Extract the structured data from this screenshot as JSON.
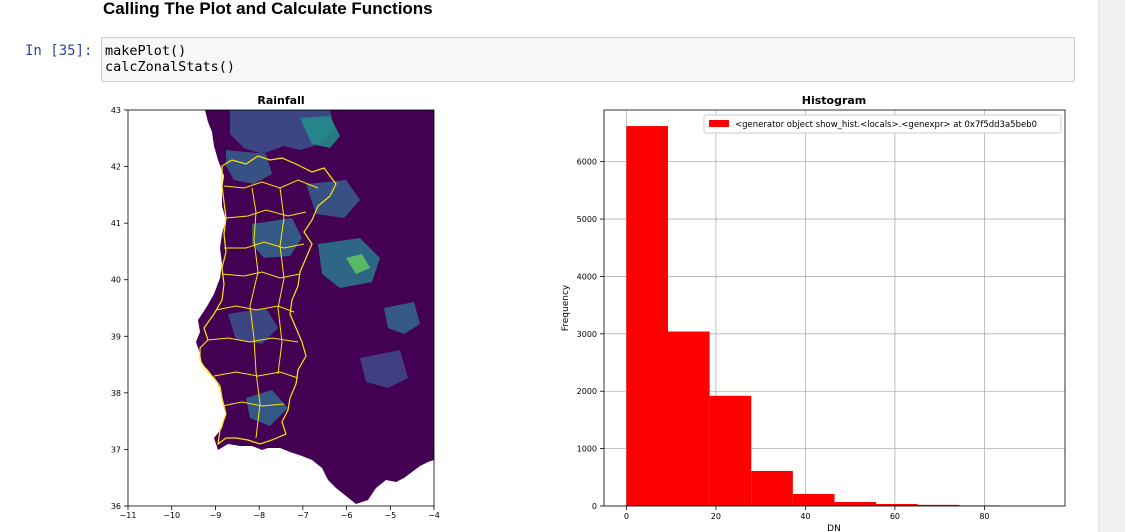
{
  "notebook": {
    "heading": "Calling The Plot and Calculate Functions",
    "prompt": "In [35]:",
    "code_lines": [
      "makePlot()",
      "calcZonalStats()"
    ]
  },
  "colors": {
    "prompt": "#303f9f",
    "map_background": "#440154",
    "boundary": "#ffe600",
    "histogram_bars": "#ff0000"
  },
  "chart_data": [
    {
      "type": "heatmap",
      "title": "Rainfall",
      "colormap": "viridis",
      "x_ticks": [
        "−11",
        "−10",
        "−9",
        "−8",
        "−7",
        "−6",
        "−5",
        "−4"
      ],
      "y_ticks": [
        "36",
        "37",
        "38",
        "39",
        "40",
        "41",
        "42",
        "43"
      ],
      "xlim": [
        -11,
        -4
      ],
      "ylim": [
        36,
        43
      ],
      "grid": false
    },
    {
      "type": "bar",
      "title": "Histogram",
      "xlabel": "DN",
      "ylabel": "Frequency",
      "legend": "<generator object show_hist.<locals>.<genexpr> at 0x7f5dd3a5beb0",
      "legend_position": "top-right",
      "x_ticks": [
        "0",
        "20",
        "40",
        "60",
        "80"
      ],
      "y_ticks": [
        "0",
        "1000",
        "2000",
        "3000",
        "4000",
        "5000",
        "6000"
      ],
      "xlim": [
        -5,
        98
      ],
      "ylim": [
        0,
        6900
      ],
      "grid": true,
      "bins": [
        {
          "x0": 0,
          "x1": 9.3,
          "value": 6620
        },
        {
          "x0": 9.3,
          "x1": 18.6,
          "value": 3040
        },
        {
          "x0": 18.6,
          "x1": 27.9,
          "value": 1920
        },
        {
          "x0": 27.9,
          "x1": 37.2,
          "value": 610
        },
        {
          "x0": 37.2,
          "x1": 46.5,
          "value": 210
        },
        {
          "x0": 46.5,
          "x1": 55.8,
          "value": 70
        },
        {
          "x0": 55.8,
          "x1": 65.1,
          "value": 35
        },
        {
          "x0": 65.1,
          "x1": 74.4,
          "value": 20
        },
        {
          "x0": 74.4,
          "x1": 83.7,
          "value": 10
        }
      ]
    }
  ]
}
